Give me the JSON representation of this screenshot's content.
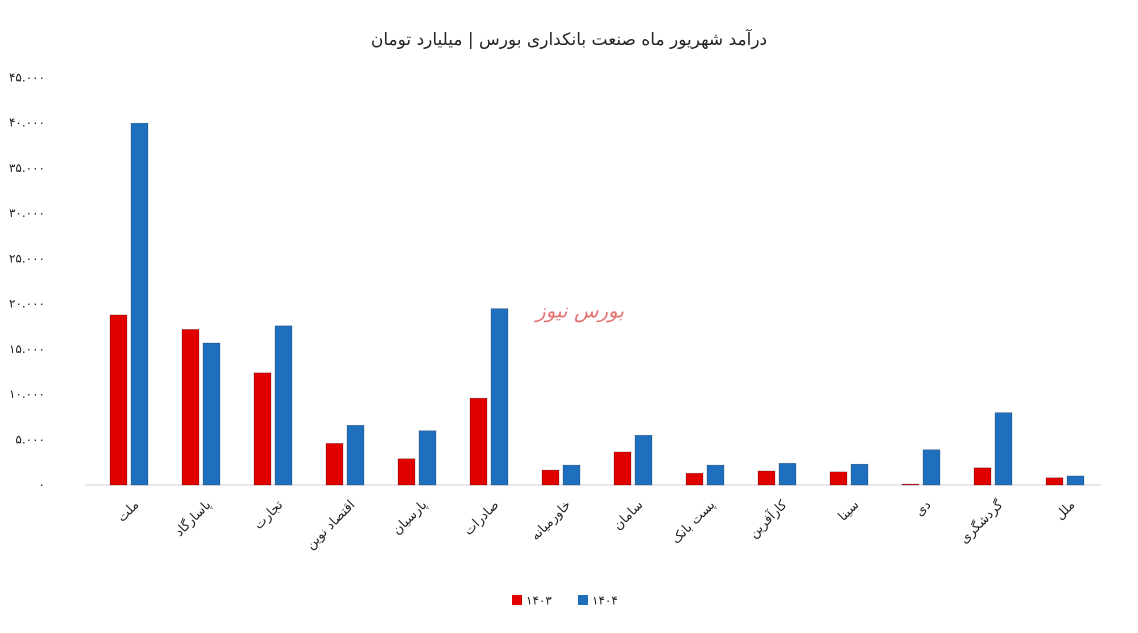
{
  "chart_data": {
    "type": "bar",
    "title": "درآمد شهریور ماه صنعت بانکداری بورس | میلیارد تومان",
    "watermark": "بورس نیوز",
    "categories": [
      "ملت",
      "پاسارگاد",
      "تجارت",
      "اقتصاد نوین",
      "پارسیان",
      "صادرات",
      "خاورمیانه",
      "سامان",
      "پست بانک",
      "کارآفرین",
      "سینا",
      "دی",
      "گردشگری",
      "ملل"
    ],
    "series": [
      {
        "name": "۱۴۰۳",
        "color": "#e00000",
        "values": [
          18800,
          17200,
          12400,
          4600,
          2900,
          9600,
          1650,
          3650,
          1300,
          1550,
          1450,
          100,
          1900,
          800
        ]
      },
      {
        "name": "۱۴۰۴",
        "color": "#1f6fbf",
        "values": [
          40000,
          15700,
          17600,
          6600,
          6000,
          19500,
          2200,
          5500,
          2200,
          2400,
          2300,
          3900,
          8000,
          1000
        ]
      }
    ],
    "ylim": [
      0,
      45000
    ],
    "yticks": [
      {
        "value": 0,
        "label": "۰"
      },
      {
        "value": 5000,
        "label": "۵.۰۰۰"
      },
      {
        "value": 10000,
        "label": "۱۰.۰۰۰"
      },
      {
        "value": 15000,
        "label": "۱۵.۰۰۰"
      },
      {
        "value": 20000,
        "label": "۲۰.۰۰۰"
      },
      {
        "value": 25000,
        "label": "۲۵.۰۰۰"
      },
      {
        "value": 30000,
        "label": "۳۰.۰۰۰"
      },
      {
        "value": 35000,
        "label": "۳۵.۰۰۰"
      },
      {
        "value": 40000,
        "label": "۴۰.۰۰۰"
      },
      {
        "value": 45000,
        "label": "۴۵.۰۰۰"
      }
    ],
    "legend": "bottom"
  }
}
